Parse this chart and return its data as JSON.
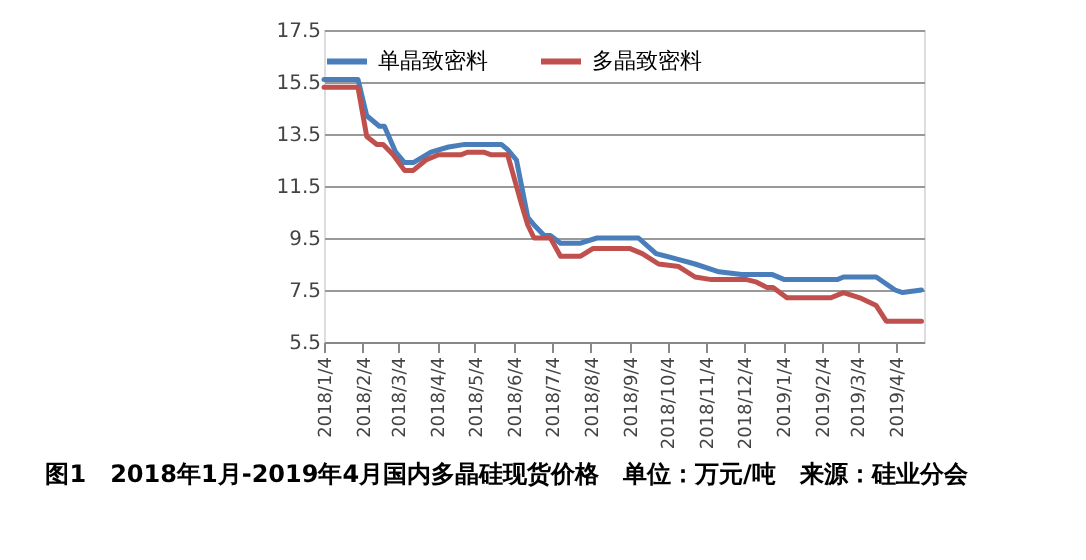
{
  "chart_data": {
    "type": "line",
    "annotations": [
      "图1　2018年1月-2019年4月国内多晶硅现货价格　单位：万元/吨　来源：硅业分会"
    ],
    "series": [
      {
        "name": "单晶致密料",
        "color": "#4a7ebb",
        "x": [
          "2018-01-04",
          "2018-01-31",
          "2018-02-07",
          "2018-02-17",
          "2018-02-21",
          "2018-03-02",
          "2018-03-09",
          "2018-03-16",
          "2018-03-30",
          "2018-04-13",
          "2018-04-26",
          "2018-05-25",
          "2018-05-30",
          "2018-06-06",
          "2018-06-15",
          "2018-06-20",
          "2018-06-28",
          "2018-07-03",
          "2018-07-11",
          "2018-07-27",
          "2018-08-09",
          "2018-09-11",
          "2018-09-25",
          "2018-10-11",
          "2018-10-26",
          "2018-11-14",
          "2018-12-02",
          "2018-12-26",
          "2019-01-05",
          "2019-02-16",
          "2019-02-21",
          "2019-03-19",
          "2019-04-03",
          "2019-04-09",
          "2019-04-24"
        ],
        "values": [
          15.6,
          15.6,
          14.2,
          13.8,
          13.8,
          12.8,
          12.4,
          12.4,
          12.8,
          13.0,
          13.1,
          13.1,
          12.9,
          12.5,
          10.3,
          10.0,
          9.6,
          9.6,
          9.3,
          9.3,
          9.5,
          9.5,
          8.9,
          8.7,
          8.5,
          8.2,
          8.1,
          8.1,
          7.9,
          7.9,
          8.0,
          8.0,
          7.5,
          7.4,
          7.5
        ]
      },
      {
        "name": "多晶致密料",
        "color": "#c0504d",
        "x": [
          "2018-01-04",
          "2018-01-31",
          "2018-02-07",
          "2018-02-15",
          "2018-02-20",
          "2018-02-28",
          "2018-03-09",
          "2018-03-16",
          "2018-03-26",
          "2018-04-05",
          "2018-04-23",
          "2018-04-28",
          "2018-05-11",
          "2018-05-17",
          "2018-05-30",
          "2018-06-10",
          "2018-06-15",
          "2018-06-20",
          "2018-07-03",
          "2018-07-11",
          "2018-07-27",
          "2018-08-06",
          "2018-09-04",
          "2018-09-14",
          "2018-09-27",
          "2018-10-13",
          "2018-10-26",
          "2018-11-08",
          "2018-12-06",
          "2018-12-14",
          "2018-12-22",
          "2018-12-27",
          "2019-01-07",
          "2019-01-31",
          "2019-02-11",
          "2019-02-21",
          "2019-03-06",
          "2019-03-19",
          "2019-03-27",
          "2019-04-24"
        ],
        "values": [
          15.3,
          15.3,
          13.4,
          13.1,
          13.1,
          12.7,
          12.1,
          12.1,
          12.5,
          12.7,
          12.7,
          12.8,
          12.8,
          12.7,
          12.7,
          10.8,
          10.0,
          9.5,
          9.5,
          8.8,
          8.8,
          9.1,
          9.1,
          8.9,
          8.5,
          8.4,
          8.0,
          7.9,
          7.9,
          7.8,
          7.6,
          7.6,
          7.2,
          7.2,
          7.2,
          7.4,
          7.2,
          6.9,
          6.3,
          6.3
        ]
      }
    ],
    "xlim": [
      "2018-01-04",
      "2019-04-26"
    ],
    "xticks": [
      {
        "value": "2018-01-04",
        "label": "2018/1/4"
      },
      {
        "value": "2018-02-04",
        "label": "2018/2/4"
      },
      {
        "value": "2018-03-04",
        "label": "2018/3/4"
      },
      {
        "value": "2018-04-04",
        "label": "2018/4/4"
      },
      {
        "value": "2018-05-04",
        "label": "2018/5/4"
      },
      {
        "value": "2018-06-04",
        "label": "2018/6/4"
      },
      {
        "value": "2018-07-04",
        "label": "2018/7/4"
      },
      {
        "value": "2018-08-04",
        "label": "2018/8/4"
      },
      {
        "value": "2018-09-04",
        "label": "2018/9/4"
      },
      {
        "value": "2018-10-04",
        "label": "2018/10/4"
      },
      {
        "value": "2018-11-04",
        "label": "2018/11/4"
      },
      {
        "value": "2018-12-04",
        "label": "2018/12/4"
      },
      {
        "value": "2019-01-04",
        "label": "2019/1/4"
      },
      {
        "value": "2019-02-04",
        "label": "2019/2/4"
      },
      {
        "value": "2019-03-04",
        "label": "2019/3/4"
      },
      {
        "value": "2019-04-04",
        "label": "2019/4/4"
      }
    ],
    "ylim": [
      5.5,
      17.5
    ],
    "yticks": [
      5.5,
      7.5,
      9.5,
      11.5,
      13.5,
      15.5,
      17.5
    ],
    "grid": "y",
    "legend": "top",
    "marker": "none",
    "line_style": "solid"
  }
}
